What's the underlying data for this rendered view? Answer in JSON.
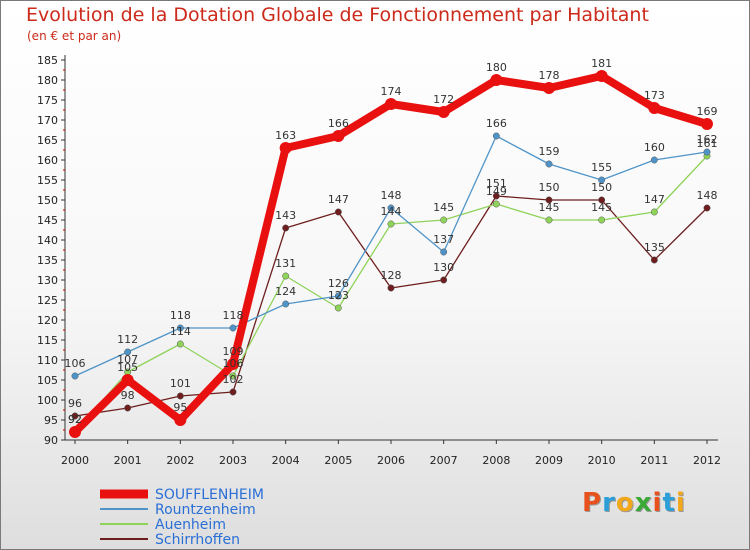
{
  "title": "Evolution de la Dotation Globale de Fonctionnement par Habitant",
  "subtitle": "(en € et par an)",
  "logo": {
    "letters": [
      "P",
      "r",
      "o",
      "x",
      "i",
      "t",
      "i"
    ],
    "colors": [
      "#e8501c",
      "#2a9fd8",
      "#f2a81d",
      "#3aa935",
      "#e8501c",
      "#2a9fd8",
      "#f2a81d"
    ]
  },
  "chart_data": {
    "type": "line",
    "title": "Evolution de la Dotation Globale de Fonctionnement par Habitant",
    "subtitle": "(en € et par an)",
    "xlabel": "",
    "ylabel": "",
    "x": [
      "2000",
      "2001",
      "2002",
      "2003",
      "2004",
      "2005",
      "2006",
      "2007",
      "2008",
      "2009",
      "2010",
      "2011",
      "2012"
    ],
    "ylim": [
      90,
      185
    ],
    "yticks": [
      90,
      95,
      100,
      105,
      110,
      115,
      120,
      125,
      130,
      135,
      140,
      145,
      150,
      155,
      160,
      165,
      170,
      175,
      180,
      185
    ],
    "grid": false,
    "legend_position": "bottom-left",
    "series": [
      {
        "name": "SOUFFLENHEIM",
        "color": "#e8110f",
        "emphasis": true,
        "values": [
          92,
          105,
          95,
          109,
          163,
          166,
          174,
          172,
          180,
          178,
          181,
          173,
          169
        ]
      },
      {
        "name": "Rountzenheim",
        "color": "#4f94c8",
        "values": [
          106,
          112,
          118,
          118,
          124,
          126,
          148,
          137,
          166,
          159,
          155,
          160,
          162
        ]
      },
      {
        "name": "Auenheim",
        "color": "#8fd35a",
        "values": [
          92,
          107,
          114,
          106,
          131,
          123,
          144,
          145,
          149,
          145,
          145,
          147,
          161
        ]
      },
      {
        "name": "Schirrhoffen",
        "color": "#6e1e1e",
        "values": [
          96,
          98,
          101,
          102,
          143,
          147,
          128,
          130,
          151,
          150,
          150,
          135,
          148
        ]
      }
    ]
  }
}
